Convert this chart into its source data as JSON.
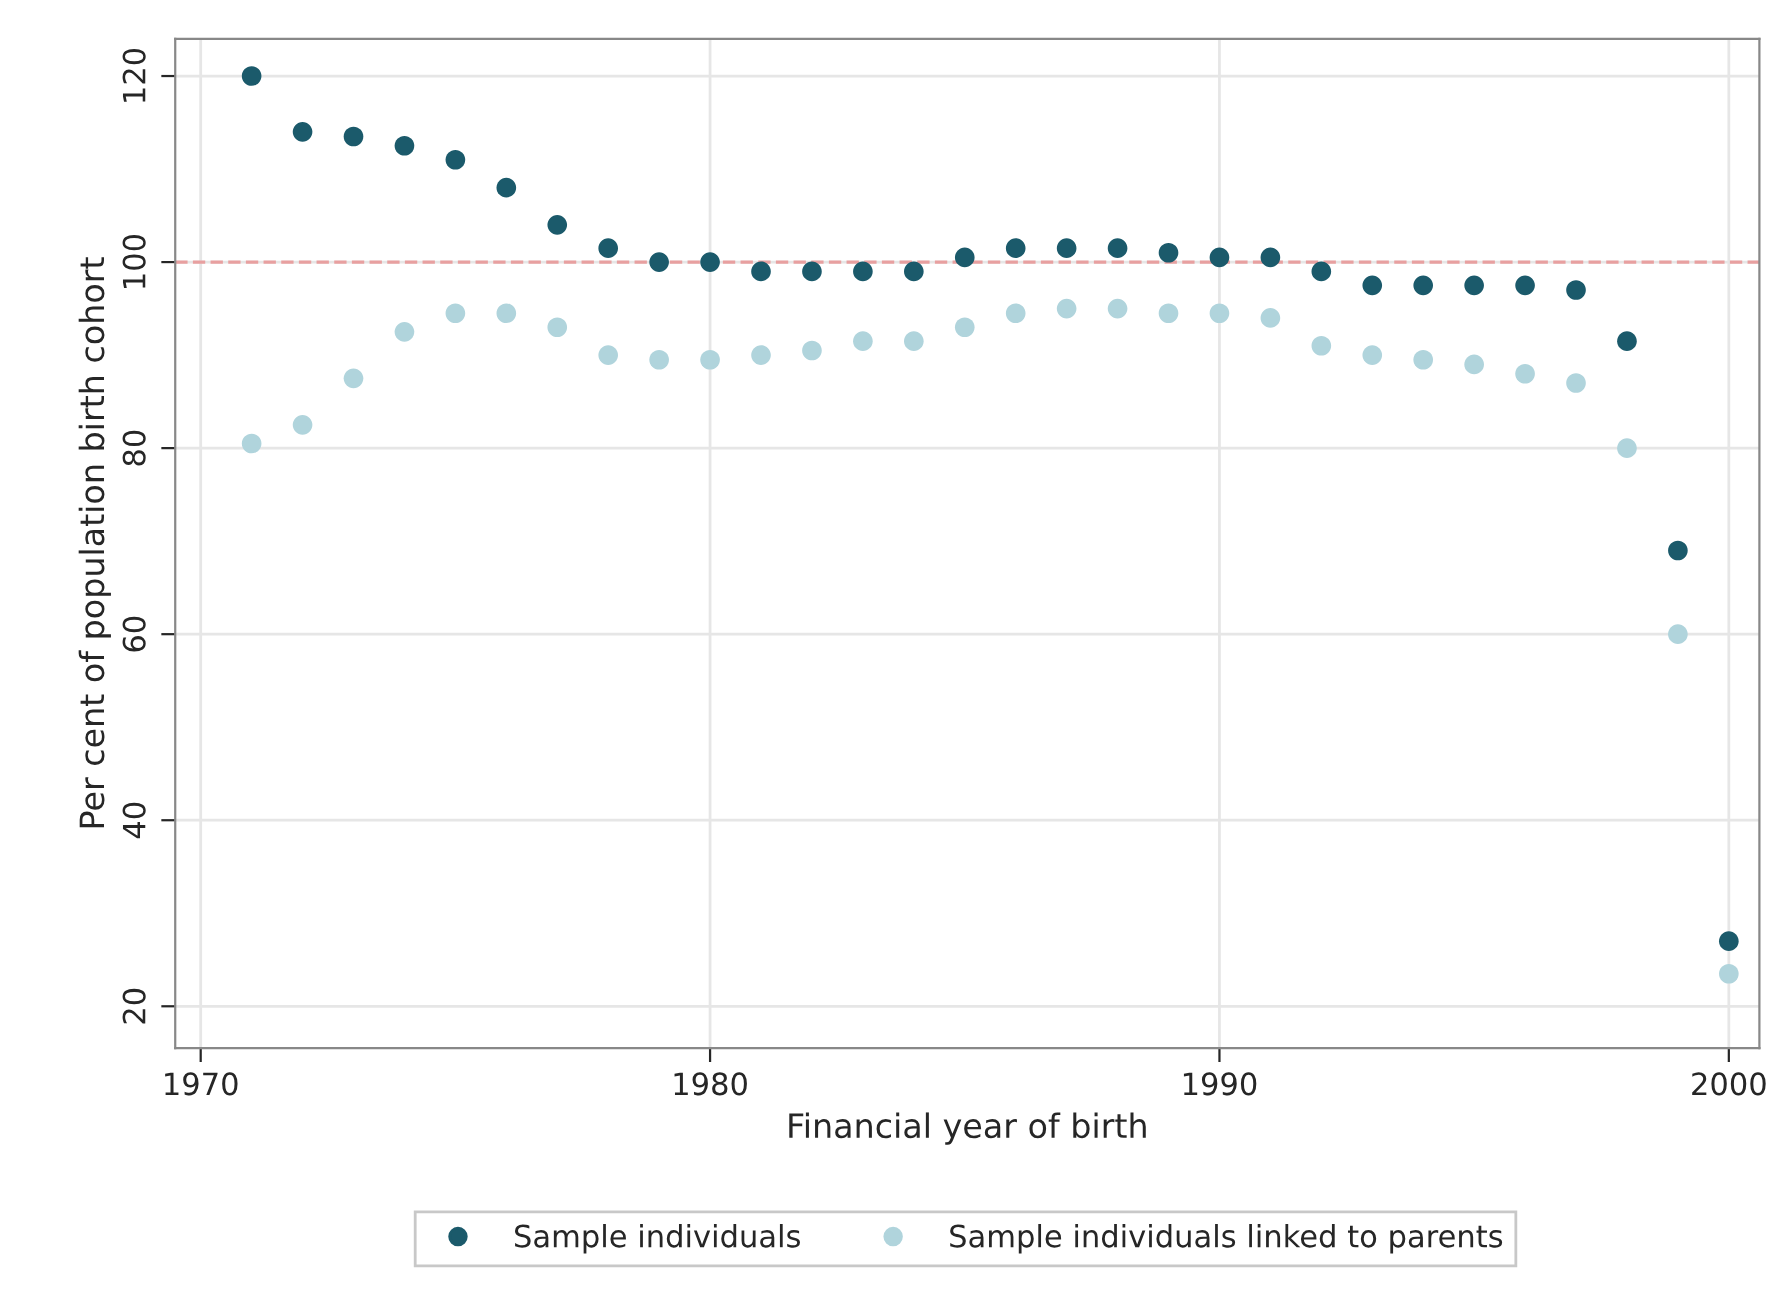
{
  "chart_data": {
    "type": "scatter",
    "xlabel": "Financial year of birth",
    "ylabel": "Per cent of population birth cohort",
    "x": [
      1971,
      1972,
      1973,
      1974,
      1975,
      1976,
      1977,
      1978,
      1979,
      1980,
      1981,
      1982,
      1983,
      1984,
      1985,
      1986,
      1987,
      1988,
      1989,
      1990,
      1991,
      1992,
      1993,
      1994,
      1995,
      1996,
      1997,
      1998,
      1999,
      2000
    ],
    "series": [
      {
        "name": "Sample individuals",
        "color": "#1b5a6b",
        "values": [
          120,
          114,
          113.5,
          112.5,
          111,
          108,
          104,
          101.5,
          100,
          100,
          99,
          99,
          99,
          99,
          100.5,
          101.5,
          101.5,
          101.5,
          101,
          100.5,
          100.5,
          99,
          97.5,
          97.5,
          97.5,
          97.5,
          97,
          91.5,
          69,
          27
        ]
      },
      {
        "name": "Sample individuals linked to parents",
        "color": "#b0d4dc",
        "values": [
          80.5,
          82.5,
          87.5,
          92.5,
          94.5,
          94.5,
          93,
          90,
          89.5,
          89.5,
          90,
          90.5,
          91.5,
          91.5,
          93,
          94.5,
          95,
          95,
          94.5,
          94.5,
          94,
          91,
          90,
          89.5,
          89,
          88,
          87,
          80,
          60,
          23.5
        ]
      }
    ],
    "xlim": [
      1969.5,
      2000.6
    ],
    "xticks": [
      1970,
      1980,
      1990,
      2000
    ],
    "ylim": [
      15.5,
      124
    ],
    "yticks": [
      20,
      40,
      60,
      80,
      100,
      120
    ],
    "ref_lines": [
      {
        "axis": "y",
        "value": 100,
        "color": "#e8a0a0",
        "line_style": "dashed"
      }
    ],
    "grid": true,
    "legend": "bottom",
    "marker": "circle"
  }
}
